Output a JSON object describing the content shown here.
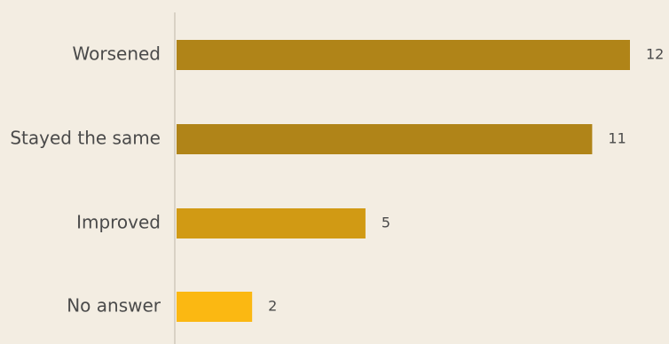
{
  "colors": {
    "background": "#f3ede2",
    "axis": "#d9d2c5",
    "text": "#4a4a4a"
  },
  "chart_data": {
    "type": "bar",
    "orientation": "horizontal",
    "categories": [
      "Worsened",
      "Stayed the same",
      "Improved",
      "No answer"
    ],
    "values": [
      12,
      11,
      5,
      2
    ],
    "value_labels": [
      "12",
      "11",
      "5",
      "2"
    ],
    "bar_colors": [
      "#b08418",
      "#b08418",
      "#d19a14",
      "#fbb812"
    ],
    "xlim": [
      0,
      12
    ],
    "grid": false,
    "legend": "none",
    "title": "",
    "xlabel": "",
    "ylabel": ""
  }
}
